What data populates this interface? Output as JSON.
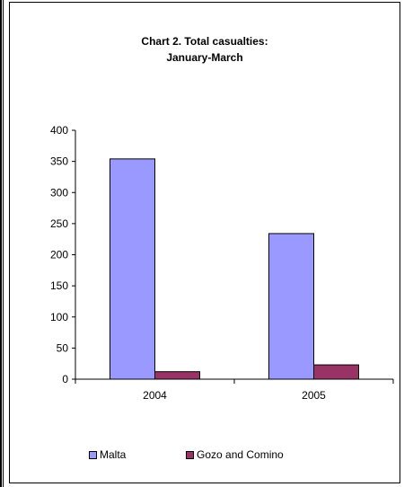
{
  "chart_data": {
    "type": "bar",
    "title": "Chart 2. Total casualties: January-March",
    "title_lines": [
      "Chart 2. Total casualties:",
      "January-March"
    ],
    "categories": [
      "2004",
      "2005"
    ],
    "series": [
      {
        "name": "Malta",
        "values": [
          354,
          234
        ],
        "color": "#9999ff"
      },
      {
        "name": "Gozo and Comino",
        "values": [
          12,
          23
        ],
        "color": "#993366"
      }
    ],
    "xlabel": "",
    "ylabel": "",
    "ylim": [
      0,
      400
    ],
    "yticks": [
      0,
      50,
      100,
      150,
      200,
      250,
      300,
      350,
      400
    ],
    "grid": false,
    "legend_position": "bottom"
  }
}
